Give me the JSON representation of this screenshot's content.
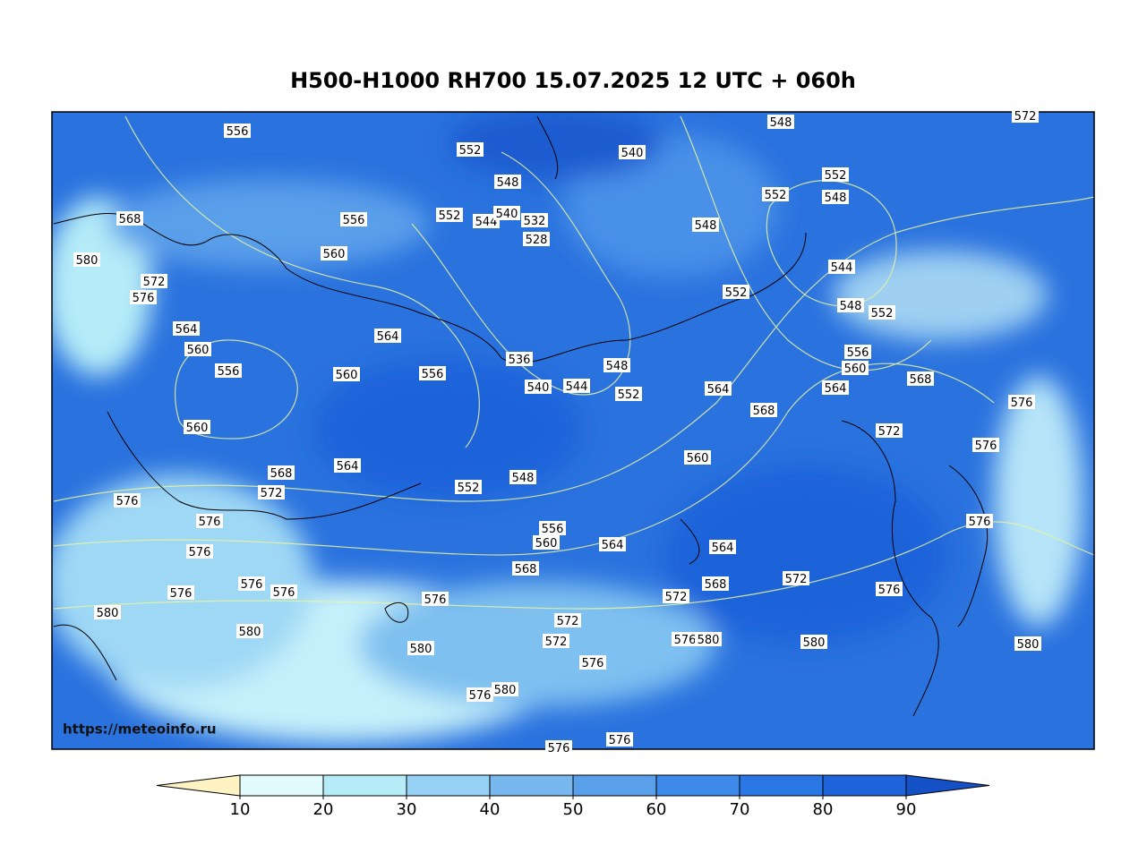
{
  "title": "H500-H1000 RH700 15.07.2025 12 UTC + 060h",
  "watermark": "https://meteoinfo.ru",
  "colorbar": {
    "ticks": [
      10,
      20,
      30,
      40,
      50,
      60,
      70,
      80,
      90
    ],
    "colors": [
      "#fff3c4",
      "#e2fbfd",
      "#b6ecf8",
      "#96d2f4",
      "#78b8ee",
      "#5a9fea",
      "#3e8aea",
      "#2a76e4",
      "#1e63da",
      "#1450c6"
    ]
  },
  "contour_labels": [
    556,
    552,
    540,
    548,
    572,
    548,
    552,
    548,
    552,
    568,
    556,
    552,
    544,
    540,
    532,
    528,
    548,
    580,
    560,
    544,
    572,
    576,
    552,
    548,
    552,
    564,
    564,
    560,
    556,
    536,
    556,
    560,
    556,
    548,
    560,
    568,
    544,
    540,
    564,
    552,
    564,
    576,
    568,
    560,
    572,
    576,
    560,
    564,
    568,
    548,
    552,
    572,
    576,
    576,
    576,
    556,
    560,
    564,
    564,
    576,
    568,
    572,
    576,
    568,
    576,
    576,
    576,
    576,
    572,
    580,
    572,
    580,
    576,
    580,
    580,
    580,
    572,
    580,
    576,
    580,
    576,
    576,
    576
  ]
}
